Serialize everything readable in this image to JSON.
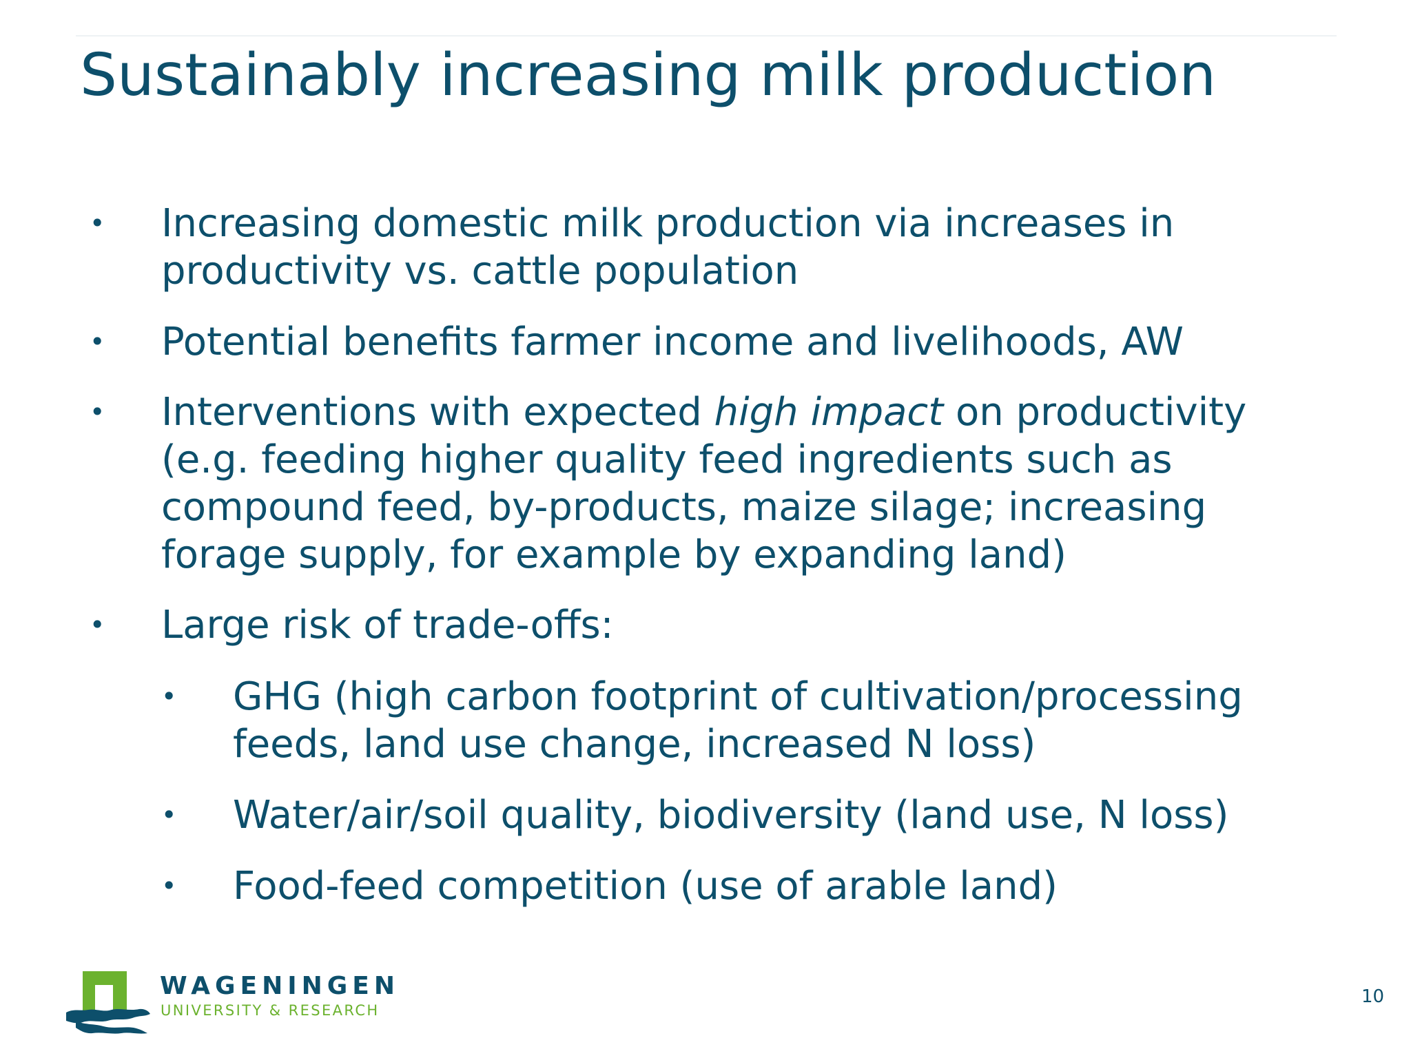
{
  "slide": {
    "title": "Sustainably increasing milk production",
    "bullets": [
      {
        "bullet_symbol": "•",
        "lines": [
          "Increasing domestic milk production via increases in",
          "productivity vs. cattle population"
        ]
      },
      {
        "bullet_symbol": "•",
        "lines": [
          "Potential benefits farmer income and livelihoods, AW"
        ]
      },
      {
        "bullet_symbol": "•",
        "line1_before_italic": "Interventions with expected ",
        "line1_italic": "high impact",
        "line1_after_italic": " on productivity",
        "lines": [
          "(e.g. feeding higher quality feed ingredients such as",
          "compound feed, by-products, maize silage; increasing",
          "forage supply, for example by expanding land)"
        ]
      },
      {
        "bullet_symbol": "•",
        "lines": [
          "Large risk of trade-offs:"
        ]
      }
    ],
    "sub_bullets": [
      {
        "bullet_symbol": "•",
        "lines": [
          "GHG (high carbon footprint of cultivation/processing",
          "feeds, land use change, increased N loss)"
        ]
      },
      {
        "bullet_symbol": "•",
        "lines": [
          "Water/air/soil quality, biodiversity (land use, N loss)"
        ]
      },
      {
        "bullet_symbol": "•",
        "lines": [
          "Food-feed competition (use of arable land)"
        ]
      }
    ],
    "page_number": "10"
  },
  "logo": {
    "name": "WAGENINGEN",
    "subtitle": "UNIVERSITY & RESEARCH",
    "colors": {
      "green": "#6bb22e",
      "navy": "#0d4f6b"
    }
  },
  "colors": {
    "text": "#0d4f6b",
    "background": "#ffffff"
  }
}
